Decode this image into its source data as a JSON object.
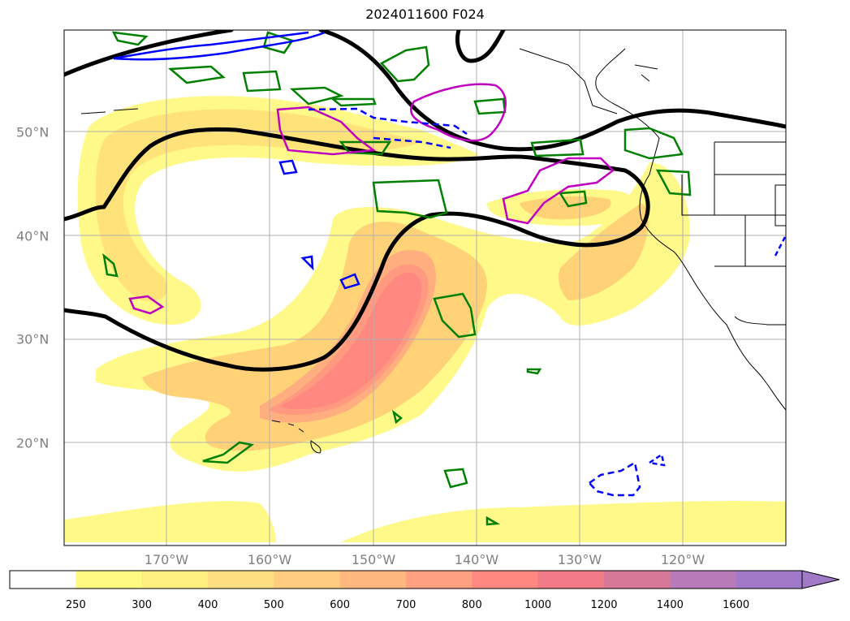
{
  "title": "2024011600 F024",
  "lon_labels": [
    "170°W",
    "160°W",
    "150°W",
    "140°W",
    "130°W",
    "120°W"
  ],
  "lat_labels": [
    "50°N",
    "40°N",
    "30°N",
    "20°N"
  ],
  "colorbar": {
    "ticks": [
      "250",
      "300",
      "400",
      "500",
      "600",
      "700",
      "800",
      "1000",
      "1200",
      "1400",
      "1600"
    ],
    "colors": [
      "#ffffff",
      "#fffb80",
      "#ffee80",
      "#ffde80",
      "#ffcc80",
      "#ffb880",
      "#ffa080",
      "#ff8880",
      "#f07a86",
      "#d87898",
      "#b87ab8",
      "#a07ac8"
    ],
    "extend": "max"
  },
  "colors": {
    "contour_black": "#000000",
    "green": "#008000",
    "magenta": "#c000c0",
    "blue": "#0000ff",
    "grid": "#b0b0b0"
  }
}
